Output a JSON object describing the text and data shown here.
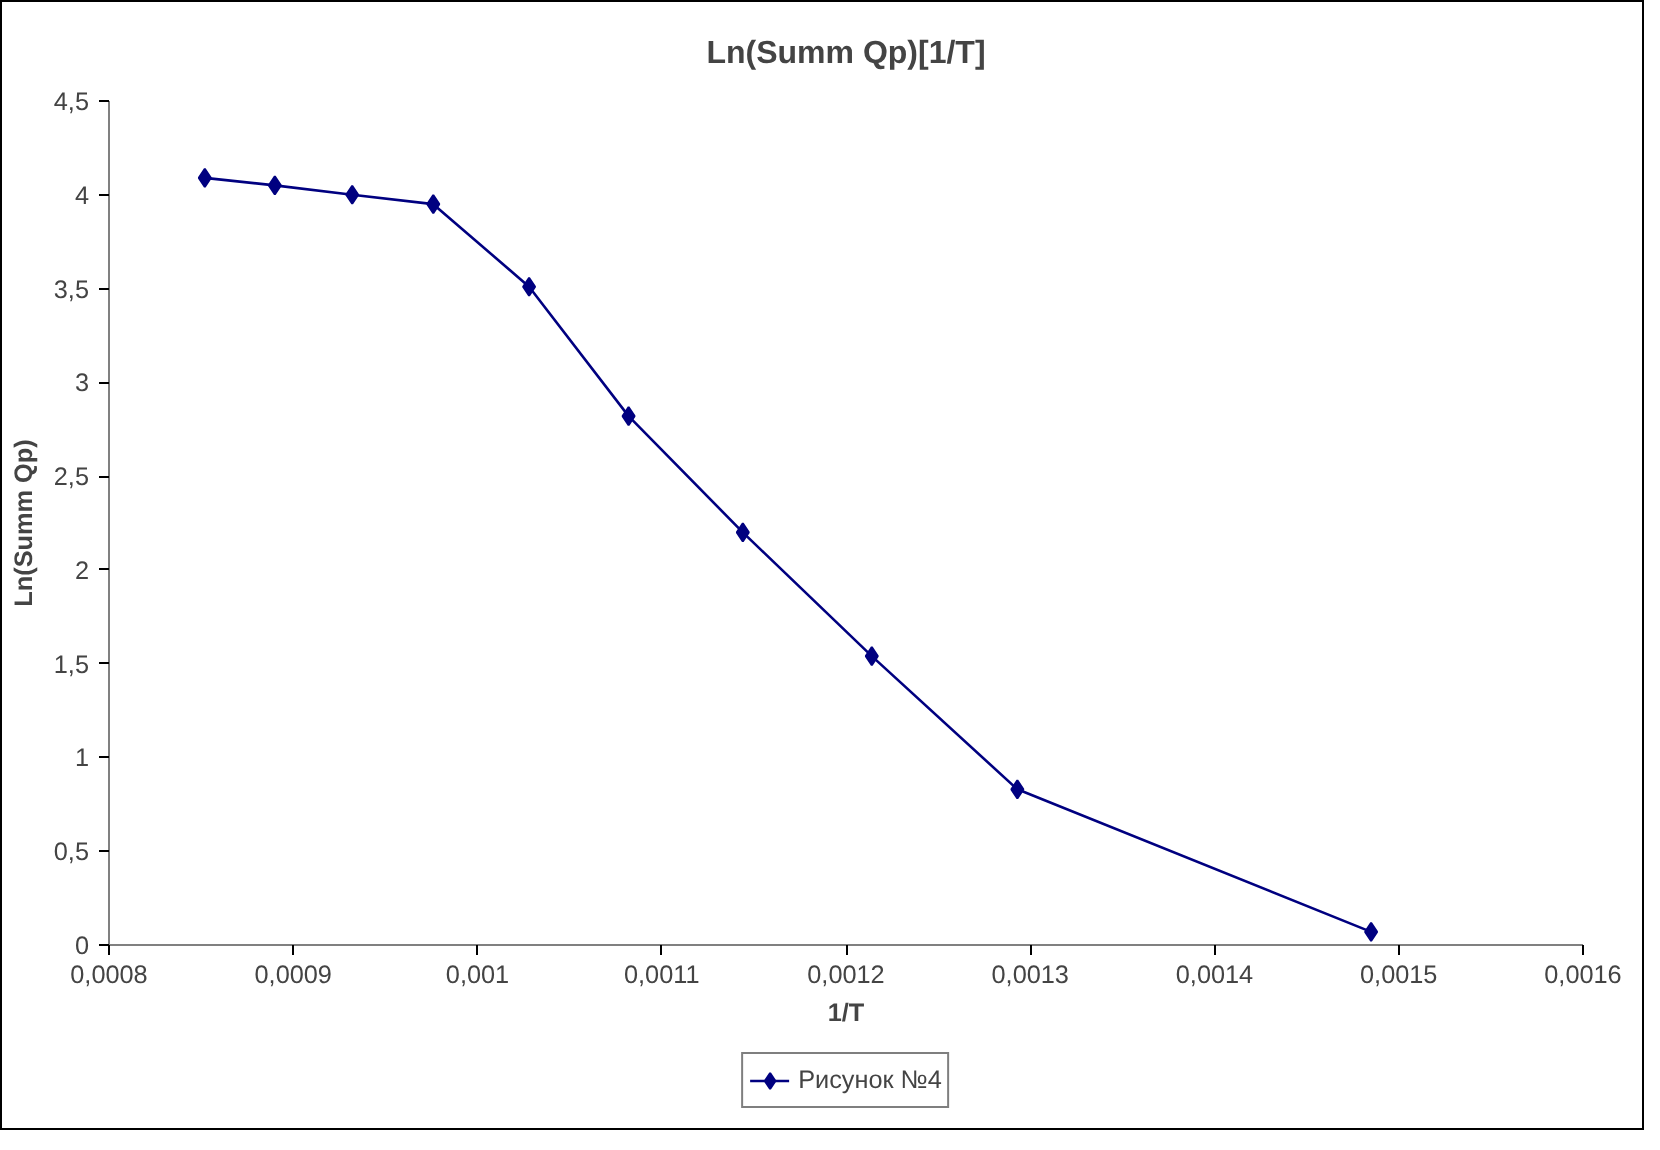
{
  "chart_data": {
    "type": "line",
    "title": "Ln(Summ Qp)[1/T]",
    "xlabel": "1/T",
    "ylabel": "Ln(Summ Qp)",
    "x": [
      0.000852,
      0.00089,
      0.000932,
      0.000976,
      0.001028,
      0.001082,
      0.001144,
      0.001214,
      0.001293,
      0.001485
    ],
    "series": [
      {
        "name": "Рисунок №4",
        "color": "#000080",
        "values": [
          4.09,
          4.05,
          4.0,
          3.95,
          3.51,
          2.82,
          2.2,
          1.54,
          0.83,
          0.07
        ]
      }
    ],
    "xlim": [
      0.0008,
      0.0016
    ],
    "xticks": [
      {
        "value": 0.0008,
        "label": "0,0008"
      },
      {
        "value": 0.0009,
        "label": "0,0009"
      },
      {
        "value": 0.001,
        "label": "0,001"
      },
      {
        "value": 0.0011,
        "label": "0,0011"
      },
      {
        "value": 0.0012,
        "label": "0,0012"
      },
      {
        "value": 0.0013,
        "label": "0,0013"
      },
      {
        "value": 0.0014,
        "label": "0,0014"
      },
      {
        "value": 0.0015,
        "label": "0,0015"
      },
      {
        "value": 0.0016,
        "label": "0,0016"
      }
    ],
    "ylim": [
      0,
      4.5
    ],
    "yticks": [
      0,
      {
        "value": 0.5,
        "label": "0,5"
      },
      1,
      {
        "value": 1.5,
        "label": "1,5"
      },
      2,
      {
        "value": 2.5,
        "label": "2,5"
      },
      3,
      {
        "value": 3.5,
        "label": "3,5"
      },
      4,
      {
        "value": 4.5,
        "label": "4,5"
      }
    ],
    "grid": false,
    "legend": "bottom",
    "marker": "diamond",
    "line_style": "solid"
  }
}
